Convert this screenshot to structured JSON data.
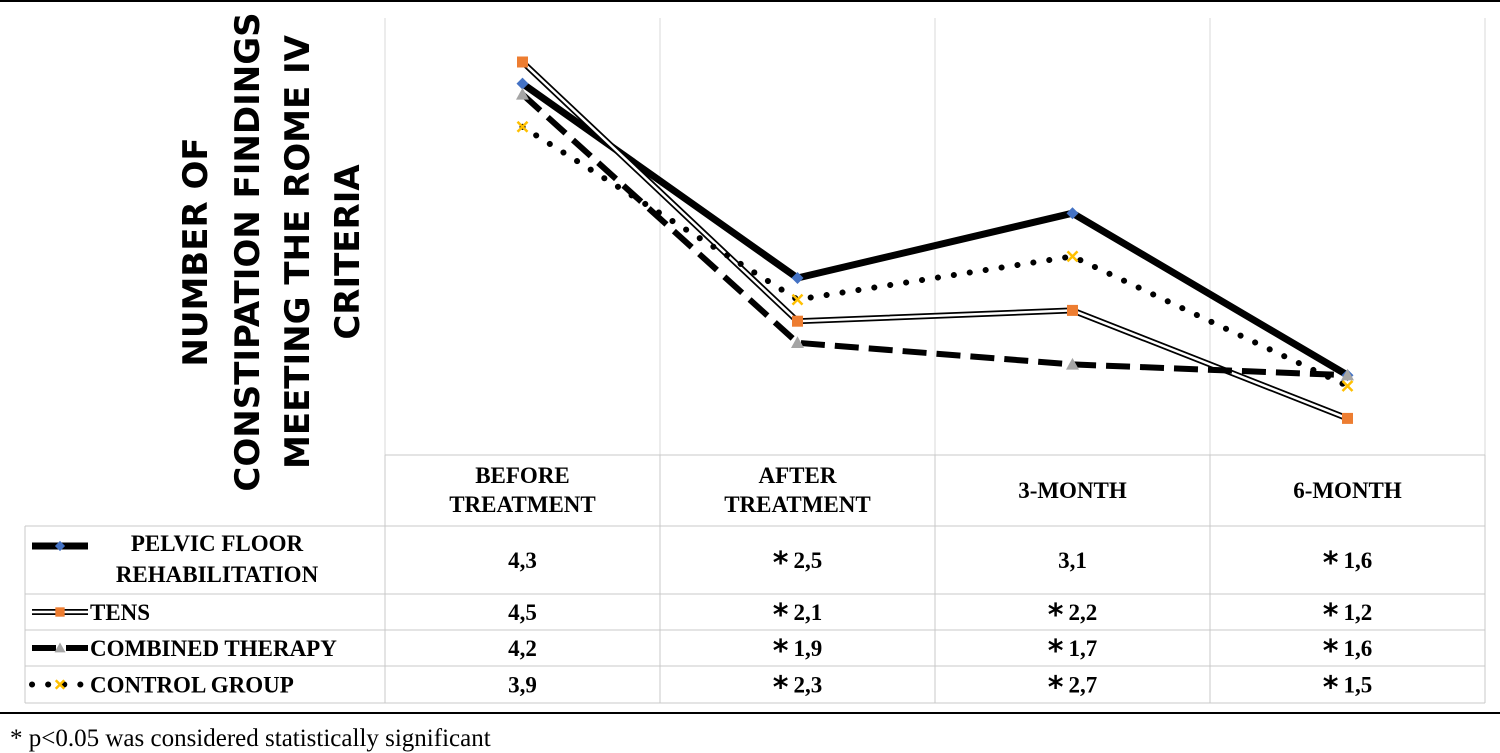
{
  "chart_data": {
    "type": "line",
    "ylabel": "NUMBER OF CONSTIPATION FINDINGS MEETING THE ROME IV CRITERIA",
    "categories": [
      [
        "BEFORE",
        "TREATMENT"
      ],
      [
        "AFTER",
        "TREATMENT"
      ],
      [
        "3-MONTH"
      ],
      [
        "6-MONTH"
      ]
    ],
    "series": [
      {
        "name": "PELVIC FLOOR REHABILITATION",
        "name_lines": [
          "PELVIC FLOOR",
          "REHABILITATION"
        ],
        "values": [
          4.3,
          2.5,
          3.1,
          1.6
        ],
        "labels": [
          "4,3",
          "2,5",
          "3,1",
          "1,6"
        ],
        "significant": [
          false,
          true,
          false,
          true
        ],
        "line_color": "#000000",
        "marker": "diamond",
        "marker_color": "#4472C4"
      },
      {
        "name": "TENS",
        "name_lines": [
          "TENS"
        ],
        "values": [
          4.5,
          2.1,
          2.2,
          1.2
        ],
        "labels": [
          "4,5",
          "2,1",
          "2,2",
          "1,2"
        ],
        "significant": [
          false,
          true,
          true,
          true
        ],
        "line_color": "#000000",
        "marker": "square",
        "marker_color": "#ED7D31"
      },
      {
        "name": "COMBINED THERAPY",
        "name_lines": [
          "COMBINED THERAPY"
        ],
        "values": [
          4.2,
          1.9,
          1.7,
          1.6
        ],
        "labels": [
          "4,2",
          "1,9",
          "1,7",
          "1,6"
        ],
        "significant": [
          false,
          true,
          true,
          true
        ],
        "line_color": "#000000",
        "marker": "triangle",
        "marker_color": "#A5A5A5"
      },
      {
        "name": "CONTROL GROUP",
        "name_lines": [
          "CONTROL GROUP"
        ],
        "values": [
          3.9,
          2.3,
          2.7,
          1.5
        ],
        "labels": [
          "3,9",
          "2,3",
          "2,7",
          "1,5"
        ],
        "significant": [
          false,
          true,
          true,
          true
        ],
        "line_color": "#000000",
        "marker": "x",
        "marker_color": "#FFC000"
      }
    ],
    "significance_symbol": "*",
    "footnote": "* p<0.05 was considered statistically significant",
    "grid": "vertical",
    "legend": "data-table"
  }
}
